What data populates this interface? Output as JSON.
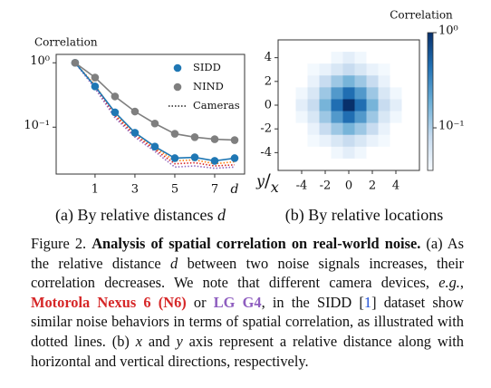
{
  "chart_data": [
    {
      "type": "line",
      "ylabel": "Correlation",
      "xlabel": "d",
      "log_y": true,
      "x": [
        0,
        1,
        2,
        3,
        4,
        5,
        6,
        7,
        8
      ],
      "xlim": [
        -0.95,
        8.5
      ],
      "xticks": [
        1,
        3,
        5,
        7
      ],
      "ylim": [
        0.0187,
        1.35
      ],
      "yticks": [
        {
          "value": 1,
          "label": "10⁰"
        },
        {
          "value": 0.1,
          "label": "10⁻¹"
        }
      ],
      "legend": "upper right",
      "series": [
        {
          "name": "SIDD",
          "color": "#1f77b4",
          "values": [
            1,
            0.43,
            0.17,
            0.082,
            0.05,
            0.033,
            0.034,
            0.03,
            0.033
          ]
        },
        {
          "name": "NIND",
          "color": "#7f7f7f",
          "values": [
            1,
            0.59,
            0.3,
            0.175,
            0.114,
            0.079,
            0.07,
            0.065,
            0.063
          ]
        },
        {
          "name": "Cameras",
          "color": "#222222",
          "style": "dotted",
          "lines": [
            {
              "color": "#ff7f0e",
              "values": [
                1,
                0.45,
                0.16,
                0.08,
                0.048,
                0.03,
                0.031,
                0.027,
                0.029
              ]
            },
            {
              "color": "#d62728",
              "values": [
                1,
                0.42,
                0.15,
                0.075,
                0.045,
                0.027,
                0.028,
                0.025,
                0.026
              ]
            },
            {
              "color": "#9467bd",
              "values": [
                1,
                0.4,
                0.14,
                0.07,
                0.042,
                0.024,
                0.025,
                0.023,
                0.024
              ]
            }
          ]
        }
      ],
      "caption": [
        "(a) By relative distances ",
        "d"
      ]
    },
    {
      "type": "heatmap",
      "corner_label": [
        "y",
        "/",
        "x"
      ],
      "colorbar_label": "Correlation",
      "log_color": true,
      "x": [
        -5,
        -4,
        -3,
        -2,
        -1,
        0,
        1,
        2,
        3,
        4,
        5
      ],
      "y": [
        5,
        4,
        3,
        2,
        1,
        0,
        -1,
        -2,
        -3,
        -4,
        -5
      ],
      "xlim": [
        -6,
        6
      ],
      "ylim": [
        -5.5,
        5.5
      ],
      "xticks": [
        -4,
        -2,
        0,
        2,
        4
      ],
      "yticks": [
        4,
        2,
        0,
        -2,
        -4
      ],
      "clim": [
        0.0357,
        1
      ],
      "cticks": [
        {
          "value": 1,
          "label": "10⁰"
        },
        {
          "value": 0.1,
          "label": "10⁻¹"
        }
      ],
      "values": [
        [
          0.02,
          0.022,
          0.025,
          0.028,
          0.03,
          0.03,
          0.03,
          0.028,
          0.025,
          0.022,
          0.02
        ],
        [
          0.022,
          0.025,
          0.03,
          0.035,
          0.04,
          0.05,
          0.04,
          0.035,
          0.03,
          0.025,
          0.022
        ],
        [
          0.025,
          0.03,
          0.038,
          0.045,
          0.06,
          0.08,
          0.06,
          0.045,
          0.038,
          0.03,
          0.025
        ],
        [
          0.028,
          0.035,
          0.045,
          0.08,
          0.12,
          0.17,
          0.12,
          0.08,
          0.045,
          0.035,
          0.028
        ],
        [
          0.03,
          0.04,
          0.06,
          0.12,
          0.25,
          0.45,
          0.25,
          0.12,
          0.06,
          0.04,
          0.03
        ],
        [
          0.03,
          0.05,
          0.08,
          0.17,
          0.45,
          1,
          0.45,
          0.17,
          0.08,
          0.05,
          0.03
        ],
        [
          0.03,
          0.04,
          0.06,
          0.12,
          0.25,
          0.45,
          0.25,
          0.12,
          0.06,
          0.04,
          0.03
        ],
        [
          0.028,
          0.035,
          0.045,
          0.08,
          0.12,
          0.17,
          0.12,
          0.08,
          0.045,
          0.035,
          0.028
        ],
        [
          0.025,
          0.03,
          0.038,
          0.045,
          0.06,
          0.08,
          0.06,
          0.045,
          0.038,
          0.03,
          0.025
        ],
        [
          0.022,
          0.025,
          0.03,
          0.035,
          0.04,
          0.05,
          0.04,
          0.035,
          0.03,
          0.025,
          0.022
        ],
        [
          0.02,
          0.022,
          0.025,
          0.028,
          0.03,
          0.03,
          0.03,
          0.028,
          0.025,
          0.022,
          0.02
        ]
      ],
      "caption": [
        "(b) By relative locations"
      ]
    }
  ],
  "caption": [
    "Figure 2. ",
    "Analysis of spatial correlation on real-world noise.",
    " (a) As the relative distance ",
    "d",
    " between two noise signals increases, their correlation decreases. We note that different camera devices, ",
    "e.g.",
    ", ",
    "Motorola Nexus 6 (N6)",
    " or ",
    "LG G4",
    ", in the SIDD [",
    "1",
    "] dataset show similar noise behaviors in terms of spatial correlation, as illustrated with dotted lines. (b) ",
    "x",
    " and ",
    "y",
    " axis represent a relative distance along with horizontal and vertical directions, respectively."
  ]
}
